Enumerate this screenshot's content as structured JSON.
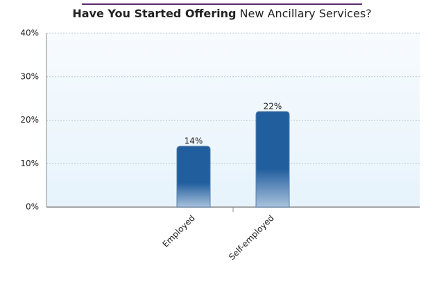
{
  "chart_data": {
    "type": "bar",
    "title": [
      "Have You Started Offering",
      "New Ancillary Services?"
    ],
    "categories": [
      "Employed",
      "Self-employed"
    ],
    "values": [
      14,
      22
    ],
    "value_labels": [
      "14%",
      "22%"
    ],
    "color": "#215e9e",
    "ylim": [
      0,
      40
    ],
    "yticks": [
      {
        "value": 0,
        "label": "0%"
      },
      {
        "value": 10,
        "label": "10%"
      },
      {
        "value": 20,
        "label": "20%"
      },
      {
        "value": 30,
        "label": "30%"
      },
      {
        "value": 40,
        "label": "40%"
      }
    ],
    "grid": true
  }
}
